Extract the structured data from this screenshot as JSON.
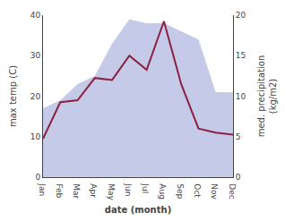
{
  "chart_data": {
    "type": "line",
    "categories": [
      "Jan",
      "Feb",
      "Mar",
      "Apr",
      "May",
      "Jun",
      "Jul",
      "Aug",
      "Sep",
      "Oct",
      "Nov",
      "Dec"
    ],
    "series": [
      {
        "type": "area",
        "axis": "y2",
        "color": "#b0b8e0",
        "values": [
          8.5,
          9.5,
          11.5,
          12.5,
          16.5,
          19.5,
          19.0,
          19.0,
          18.0,
          17.0,
          10.5,
          10.5
        ]
      },
      {
        "type": "line",
        "color": "#8B2040",
        "values": [
          9.5,
          18.5,
          19.0,
          24.5,
          24.0,
          30.0,
          26.5,
          38.5,
          23.0,
          12.0,
          11.0,
          10.5
        ]
      }
    ],
    "xlabel": "date (month)",
    "ylabel": "max temp (C)",
    "y2label": "med. precipitation\n(kg/m2)",
    "ylim": [
      0,
      40
    ],
    "yticks": [
      0,
      10,
      20,
      30,
      40
    ],
    "y2lim": [
      0,
      20
    ],
    "y2ticks": [
      0,
      5,
      10,
      15,
      20
    ],
    "grid": false
  }
}
